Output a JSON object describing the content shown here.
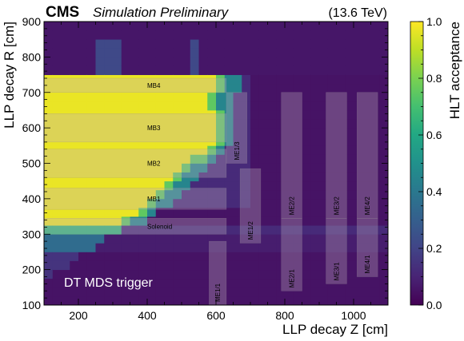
{
  "header": {
    "cms": "CMS",
    "subtitle": "Simulation Preliminary",
    "energy": "(13.6 TeV)"
  },
  "chart_data": {
    "type": "heatmap",
    "xlabel": "LLP decay Z [cm]",
    "ylabel": "LLP decay R [cm]",
    "xlim": [
      100,
      1100
    ],
    "ylim": [
      100,
      900
    ],
    "xticks": [
      200,
      400,
      600,
      800,
      1000
    ],
    "yticks": [
      100,
      200,
      300,
      400,
      500,
      600,
      700,
      800,
      900
    ],
    "colorbar": {
      "label": "HLT acceptance",
      "range": [
        0.0,
        1.0
      ],
      "ticks": [
        "0.0",
        "0.2",
        "0.4",
        "0.6",
        "0.8",
        "1.0"
      ],
      "colormap": "viridis"
    },
    "annotation": "DT MDS trigger",
    "regions": [
      {
        "label": "MB4",
        "z": [
          100,
          630
        ],
        "r": [
          700,
          740
        ]
      },
      {
        "label": "MB3",
        "z": [
          100,
          630
        ],
        "r": [
          560,
          640
        ]
      },
      {
        "label": "MB2",
        "z": [
          100,
          630
        ],
        "r": [
          460,
          540
        ]
      },
      {
        "label": "MB1",
        "z": [
          100,
          630
        ],
        "r": [
          370,
          430
        ]
      },
      {
        "label": "Solenoid",
        "z": [
          100,
          630
        ],
        "r": [
          300,
          345
        ]
      },
      {
        "label": "ME1/3",
        "z": [
          630,
          690
        ],
        "r": [
          500,
          700
        ]
      },
      {
        "label": "ME1/2",
        "z": [
          670,
          730
        ],
        "r": [
          275,
          485
        ]
      },
      {
        "label": "ME1/1",
        "z": [
          580,
          630
        ],
        "r": [
          100,
          280
        ]
      },
      {
        "label": "ME2/2",
        "z": [
          790,
          850
        ],
        "r": [
          345,
          700
        ]
      },
      {
        "label": "ME2/1",
        "z": [
          790,
          850
        ],
        "r": [
          140,
          345
        ]
      },
      {
        "label": "ME3/2",
        "z": [
          920,
          980
        ],
        "r": [
          345,
          700
        ]
      },
      {
        "label": "ME3/1",
        "z": [
          920,
          980
        ],
        "r": [
          160,
          345
        ]
      },
      {
        "label": "ME4/2",
        "z": [
          1010,
          1070
        ],
        "r": [
          345,
          700
        ]
      },
      {
        "label": "ME4/1",
        "z": [
          1010,
          1070
        ],
        "r": [
          180,
          345
        ]
      }
    ]
  }
}
